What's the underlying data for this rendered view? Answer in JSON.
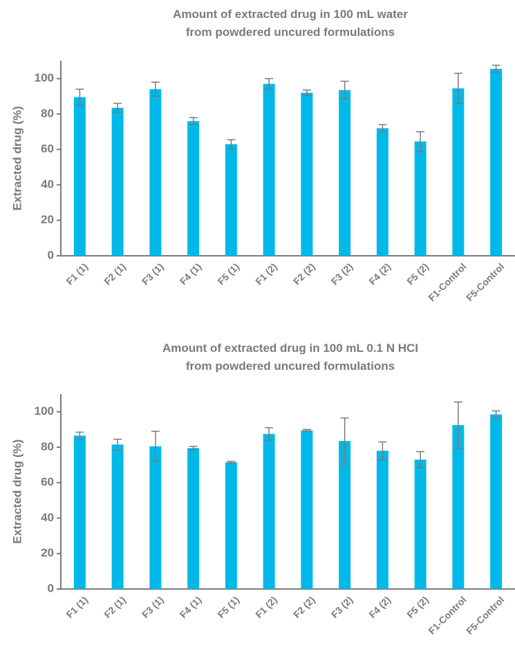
{
  "chart_data": [
    {
      "type": "bar",
      "title_lines": [
        "Amount of extracted drug in 100 mL water",
        "from powdered uncured formulations"
      ],
      "xlabel": "",
      "ylabel": "Extracted drug (%)",
      "categories": [
        "F1 (1)",
        "F2 (1)",
        "F3 (1)",
        "F4 (1)",
        "F5 (1)",
        "F1 (2)",
        "F2 (2)",
        "F3 (2)",
        "F4 (2)",
        "F5 (2)",
        "F1-Control",
        "F5-Control"
      ],
      "values": [
        89.5,
        83.5,
        94,
        76,
        63,
        97,
        92,
        93.5,
        72,
        64.5,
        94.5,
        105.5
      ],
      "errors": [
        4.5,
        2.5,
        4,
        2,
        2.5,
        3,
        1.5,
        5,
        2,
        5.5,
        8.5,
        2
      ],
      "yticks": [
        0,
        20,
        40,
        60,
        80,
        100
      ],
      "ylim": [
        0,
        110
      ],
      "bar_color": "#00b9e8",
      "error_color": "#7a7a7a",
      "grid": false,
      "legend": "none"
    },
    {
      "type": "bar",
      "title_lines": [
        "Amount of extracted drug in 100 mL 0.1 N HCI",
        "from powdered uncured formulations"
      ],
      "xlabel": "",
      "ylabel": "Extracted drug (%)",
      "categories": [
        "F1 (1)",
        "F2 (1)",
        "F3 (1)",
        "F4 (1)",
        "F5 (1)",
        "F1 (2)",
        "F2 (2)",
        "F3 (2)",
        "F4 (2)",
        "F5 (2)",
        "F1-Control",
        "F5-Control"
      ],
      "values": [
        86.5,
        81.5,
        80.5,
        79.5,
        71.5,
        87.5,
        89.5,
        83.5,
        78,
        73,
        92.5,
        98.5
      ],
      "errors": [
        2,
        3,
        8.5,
        1,
        0.5,
        3.5,
        0.5,
        13,
        5,
        4.5,
        13,
        2
      ],
      "yticks": [
        0,
        20,
        40,
        60,
        80,
        100
      ],
      "ylim": [
        0,
        110
      ],
      "bar_color": "#00b9e8",
      "error_color": "#7a7a7a",
      "grid": false,
      "legend": "none"
    }
  ]
}
